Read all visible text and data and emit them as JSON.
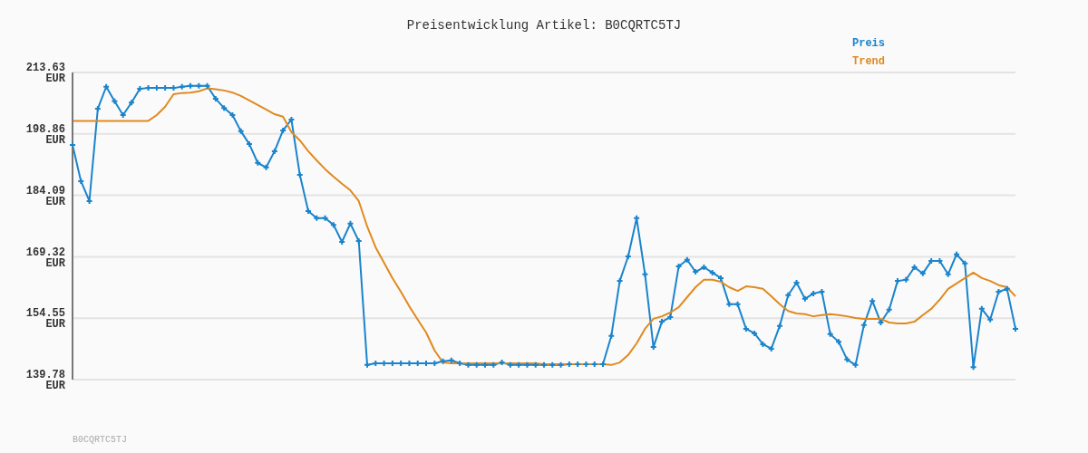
{
  "chart_data": {
    "type": "line",
    "title": "Preisentwicklung Artikel: B0CQRTC5TJ",
    "categories": [
      null,
      null,
      null,
      null,
      null,
      null,
      null,
      null,
      null,
      null,
      null,
      null,
      null,
      null,
      null,
      null,
      null,
      null,
      null,
      null,
      null,
      null,
      null,
      null,
      null,
      null,
      null,
      null,
      null,
      null,
      null,
      null,
      null,
      null,
      null,
      null,
      null,
      null,
      null,
      null,
      null,
      null,
      null,
      null,
      null,
      null,
      null,
      null,
      null,
      null,
      null,
      null,
      null,
      null,
      null,
      null,
      null,
      null,
      null,
      null,
      null,
      null,
      null,
      null,
      null,
      null,
      null,
      null,
      null,
      null,
      null,
      null,
      null,
      null,
      null,
      null,
      null,
      null,
      null,
      null,
      null,
      null,
      null,
      null,
      null,
      null,
      null,
      null,
      null,
      null,
      null,
      null,
      null,
      null,
      null,
      null,
      null,
      null,
      null,
      null,
      null,
      null,
      null,
      null,
      null,
      null,
      null,
      null,
      null,
      null,
      null,
      null,
      null
    ],
    "series": [
      {
        "name": "Preis",
        "color": "#1a84cc",
        "marker": "cross",
        "values": [
          196.2,
          187.5,
          182.7,
          204.9,
          210.2,
          206.7,
          203.4,
          206.4,
          209.7,
          209.9,
          209.9,
          209.9,
          209.9,
          210.2,
          210.4,
          210.4,
          210.4,
          207.3,
          205.1,
          203.4,
          199.5,
          196.4,
          191.9,
          190.8,
          194.7,
          199.7,
          202.3,
          189.0,
          180.3,
          178.6,
          178.6,
          177.0,
          172.9,
          177.3,
          173.1,
          143.3,
          143.7,
          143.7,
          143.7,
          143.7,
          143.7,
          143.7,
          143.7,
          143.7,
          144.2,
          144.4,
          143.7,
          143.3,
          143.3,
          143.3,
          143.3,
          143.9,
          143.3,
          143.3,
          143.3,
          143.3,
          143.3,
          143.3,
          143.3,
          143.5,
          143.5,
          143.5,
          143.5,
          143.5,
          150.3,
          163.5,
          169.4,
          178.6,
          165.1,
          147.6,
          153.7,
          154.8,
          167.0,
          168.6,
          165.7,
          166.8,
          165.5,
          164.2,
          157.9,
          157.9,
          152.0,
          150.9,
          148.3,
          147.2,
          152.7,
          160.1,
          163.1,
          159.2,
          160.5,
          160.9,
          150.7,
          148.9,
          144.6,
          143.3,
          152.9,
          158.7,
          153.5,
          156.6,
          163.5,
          163.8,
          166.8,
          165.3,
          168.3,
          168.3,
          165.1,
          169.9,
          167.7,
          142.8,
          156.8,
          154.2,
          160.9,
          161.6,
          152.0
        ]
      },
      {
        "name": "Trend",
        "color": "#e08a1e",
        "marker": "none",
        "values": [
          202.0,
          202.0,
          202.0,
          202.0,
          202.0,
          202.0,
          202.0,
          202.0,
          202.0,
          202.0,
          203.4,
          205.4,
          208.4,
          208.7,
          208.8,
          209.1,
          209.8,
          209.6,
          209.3,
          208.8,
          208.0,
          206.9,
          205.8,
          204.7,
          203.6,
          203.0,
          199.3,
          197.3,
          194.7,
          192.5,
          190.4,
          188.6,
          186.9,
          185.3,
          182.7,
          176.6,
          171.6,
          167.9,
          164.2,
          160.9,
          157.4,
          154.2,
          151.1,
          146.8,
          143.9,
          143.7,
          143.7,
          143.7,
          143.7,
          143.7,
          143.7,
          143.7,
          143.7,
          143.7,
          143.7,
          143.7,
          143.5,
          143.5,
          143.5,
          143.5,
          143.5,
          143.5,
          143.5,
          143.5,
          143.3,
          143.9,
          145.7,
          148.5,
          152.0,
          154.4,
          155.0,
          155.9,
          157.2,
          159.6,
          162.0,
          163.8,
          163.8,
          163.3,
          162.0,
          161.1,
          162.2,
          162.0,
          161.6,
          159.8,
          157.9,
          156.3,
          155.7,
          155.5,
          155.0,
          155.3,
          155.5,
          155.3,
          155.0,
          154.6,
          154.4,
          154.4,
          154.4,
          153.5,
          153.3,
          153.3,
          153.7,
          155.3,
          156.8,
          159.0,
          161.6,
          162.9,
          164.2,
          165.5,
          164.2,
          163.5,
          162.5,
          162.0,
          159.8
        ]
      }
    ],
    "ylim": [
      139.78,
      213.63
    ],
    "yticks": [
      {
        "value": 139.78,
        "label": "139.78 EUR"
      },
      {
        "value": 154.55,
        "label": "154.55 EUR"
      },
      {
        "value": 169.32,
        "label": "169.32 EUR"
      },
      {
        "value": 184.09,
        "label": "184.09 EUR"
      },
      {
        "value": 198.86,
        "label": "198.86 EUR"
      },
      {
        "value": 213.63,
        "label": "213.63 EUR"
      }
    ],
    "grid": "y",
    "legend": "top right",
    "annotations": [
      "B0CQRTC5TJ"
    ]
  }
}
